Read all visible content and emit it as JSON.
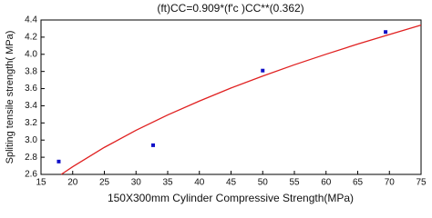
{
  "chart_data": {
    "type": "scatter",
    "title": "(ft)CC=0.909*(f'c )CC**(0.362)",
    "xlabel": "150X300mm Cylinder Compressive Strength(MPa)",
    "ylabel": "Spliting tensile strength( MPa)",
    "xlim": [
      15,
      75
    ],
    "xticks": [
      15,
      20,
      25,
      30,
      35,
      40,
      45,
      50,
      55,
      60,
      65,
      70,
      75
    ],
    "ylim": [
      2.6,
      4.4
    ],
    "yticks": [
      2.6,
      2.8,
      {
        "value": 3,
        "label": "3.0"
      },
      3.2,
      3.4,
      3.6,
      3.8,
      {
        "value": 4,
        "label": "4.0"
      },
      4.2,
      4.4
    ],
    "grid": false,
    "series": [
      {
        "type": "scatter",
        "color": "#1010c8",
        "x": [
          17.8,
          32.7,
          50,
          69.4
        ],
        "values": [
          2.75,
          2.94,
          3.81,
          4.26
        ]
      },
      {
        "type": "line",
        "color": "#e02020",
        "x": [
          18.2,
          20,
          25,
          30,
          35,
          40,
          45,
          50,
          55,
          60,
          65,
          70,
          75
        ],
        "values": [
          2.6,
          2.689,
          2.915,
          3.114,
          3.293,
          3.455,
          3.607,
          3.746,
          3.878,
          4.001,
          4.119,
          4.231,
          4.34
        ]
      }
    ]
  }
}
